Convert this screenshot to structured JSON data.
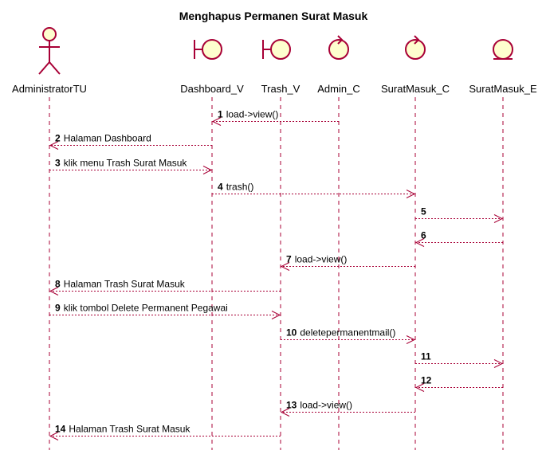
{
  "title": "Menghapus Permanen Surat Masuk",
  "participants": [
    {
      "name": "AdministratorTU",
      "icon": "actor-icon"
    },
    {
      "name": "Dashboard_V",
      "icon": "boundary-icon"
    },
    {
      "name": "Trash_V",
      "icon": "boundary-icon"
    },
    {
      "name": "Admin_C",
      "icon": "control-icon"
    },
    {
      "name": "SuratMasuk_C",
      "icon": "control-icon"
    },
    {
      "name": "SuratMasuk_E",
      "icon": "entity-icon"
    }
  ],
  "colors": {
    "line": "#A80036",
    "fill": "#FEFECE"
  },
  "messages": [
    {
      "num": "1",
      "label": "load->view()",
      "from": 3,
      "to": 1
    },
    {
      "num": "2",
      "label": "Halaman Dashboard",
      "from": 1,
      "to": 0
    },
    {
      "num": "3",
      "label": "klik menu Trash Surat Masuk",
      "from": 0,
      "to": 1
    },
    {
      "num": "4",
      "label": "trash()",
      "from": 1,
      "to": 4
    },
    {
      "num": "5",
      "label": "",
      "from": 4,
      "to": 5
    },
    {
      "num": "6",
      "label": "",
      "from": 5,
      "to": 4
    },
    {
      "num": "7",
      "label": "load->view()",
      "from": 4,
      "to": 2
    },
    {
      "num": "8",
      "label": "Halaman Trash Surat Masuk",
      "from": 2,
      "to": 0
    },
    {
      "num": "9",
      "label": "klik tombol Delete Permanent Pegawai",
      "from": 0,
      "to": 2
    },
    {
      "num": "10",
      "label": "deletepermanentmail()",
      "from": 2,
      "to": 4
    },
    {
      "num": "11",
      "label": "",
      "from": 4,
      "to": 5
    },
    {
      "num": "12",
      "label": "",
      "from": 5,
      "to": 4
    },
    {
      "num": "13",
      "label": "load->view()",
      "from": 4,
      "to": 2
    },
    {
      "num": "14",
      "label": "Halaman Trash Surat Masuk",
      "from": 2,
      "to": 0
    }
  ]
}
